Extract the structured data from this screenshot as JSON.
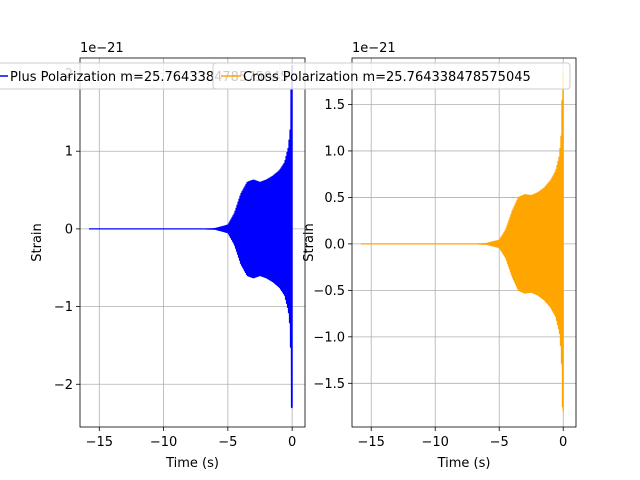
{
  "chart_data": [
    {
      "type": "line",
      "xlabel": "Time (s)",
      "ylabel": "Strain",
      "offset_text": "1e−21",
      "xlim": [
        -16.5,
        1.0
      ],
      "ylim": [
        -2.55,
        2.2
      ],
      "xticks": [
        -15,
        -10,
        -5,
        0
      ],
      "xtick_labels": [
        "−15",
        "−10",
        "−5",
        "0"
      ],
      "yticks": [
        -2,
        -1,
        0,
        1,
        2
      ],
      "ytick_labels": [
        "−2",
        "−1",
        "0",
        "1",
        "2"
      ],
      "grid": true,
      "legend_position": "top",
      "series": [
        {
          "name": "Plus Polarization m=25.764338478575045",
          "color": "#0000ff",
          "x_range": [
            -15.8,
            0.0
          ],
          "envelope": {
            "x": [
              -15.8,
              -7.0,
              -6.0,
              -5.0,
              -4.5,
              -4.0,
              -3.5,
              -3.0,
              -2.5,
              -2.0,
              -1.5,
              -1.0,
              -0.6,
              -0.3,
              -0.15,
              -0.05,
              0.0
            ],
            "upper": [
              0.0,
              0.0,
              0.005,
              0.05,
              0.2,
              0.45,
              0.6,
              0.63,
              0.6,
              0.63,
              0.68,
              0.75,
              0.85,
              1.05,
              1.3,
              2.1,
              2.1
            ],
            "lower": [
              0.0,
              0.0,
              -0.005,
              -0.05,
              -0.2,
              -0.45,
              -0.6,
              -0.63,
              -0.6,
              -0.63,
              -0.68,
              -0.75,
              -0.85,
              -1.05,
              -1.3,
              -2.3,
              -2.3
            ]
          }
        }
      ]
    },
    {
      "type": "line",
      "xlabel": "Time (s)",
      "ylabel": "Strain",
      "offset_text": "1e−21",
      "xlim": [
        -16.5,
        1.0
      ],
      "ylim": [
        -1.97,
        2.0
      ],
      "xticks": [
        -15,
        -10,
        -5,
        0
      ],
      "xtick_labels": [
        "−15",
        "−10",
        "−5",
        "0"
      ],
      "yticks": [
        -1.5,
        -1.0,
        -0.5,
        0.0,
        0.5,
        1.0,
        1.5
      ],
      "ytick_labels": [
        "−1.5",
        "−1.0",
        "−0.5",
        "0.0",
        "0.5",
        "1.0",
        "1.5"
      ],
      "grid": true,
      "legend_position": "top",
      "series": [
        {
          "name": "Cross Polarization m=25.764338478575045",
          "color": "#ffa500",
          "x_range": [
            -15.8,
            0.0
          ],
          "envelope": {
            "x": [
              -15.8,
              -7.0,
              -6.0,
              -5.0,
              -4.5,
              -4.0,
              -3.5,
              -3.0,
              -2.5,
              -2.0,
              -1.5,
              -1.0,
              -0.6,
              -0.3,
              -0.15,
              -0.05,
              0.0
            ],
            "upper": [
              0.0,
              0.0,
              0.005,
              0.04,
              0.15,
              0.35,
              0.5,
              0.53,
              0.52,
              0.55,
              0.6,
              0.68,
              0.78,
              0.95,
              1.2,
              1.85,
              1.85
            ],
            "lower": [
              0.0,
              0.0,
              -0.005,
              -0.04,
              -0.15,
              -0.35,
              -0.5,
              -0.53,
              -0.52,
              -0.55,
              -0.6,
              -0.68,
              -0.78,
              -0.95,
              -1.2,
              -1.8,
              -1.8
            ]
          }
        }
      ]
    }
  ]
}
